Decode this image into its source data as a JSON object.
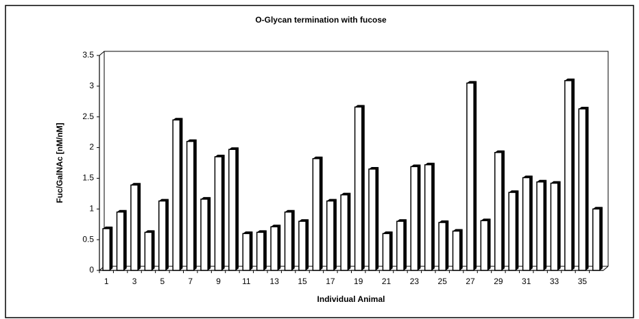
{
  "chart_data": {
    "type": "bar",
    "title": "O-Glycan termination with fucose",
    "x_label": "Individual Animal",
    "y_label": "Fuc/GalNAc [nM/nM]",
    "categories": [
      "1",
      null,
      "3",
      null,
      "5",
      null,
      "7",
      null,
      "9",
      null,
      "11",
      null,
      "13",
      null,
      "15",
      null,
      "17",
      null,
      "19",
      null,
      "21",
      null,
      "23",
      null,
      "25",
      null,
      "27",
      null,
      "29",
      null,
      "31",
      null,
      "33",
      null,
      "35",
      null
    ],
    "values": [
      0.68,
      0.95,
      1.39,
      0.62,
      1.13,
      2.45,
      2.1,
      1.16,
      1.85,
      1.97,
      0.6,
      0.62,
      0.71,
      0.95,
      0.8,
      1.82,
      1.13,
      1.23,
      2.66,
      1.65,
      0.6,
      0.8,
      1.69,
      1.72,
      0.78,
      0.64,
      3.05,
      0.81,
      1.92,
      1.27,
      1.51,
      1.44,
      1.42,
      3.09,
      2.63,
      1.0
    ],
    "color": "#ffffff",
    "ylim": [
      0,
      3.5
    ],
    "yticks": [
      0,
      0.5,
      1,
      1.5,
      2,
      2.5,
      3,
      3.5
    ],
    "grid": false
  }
}
